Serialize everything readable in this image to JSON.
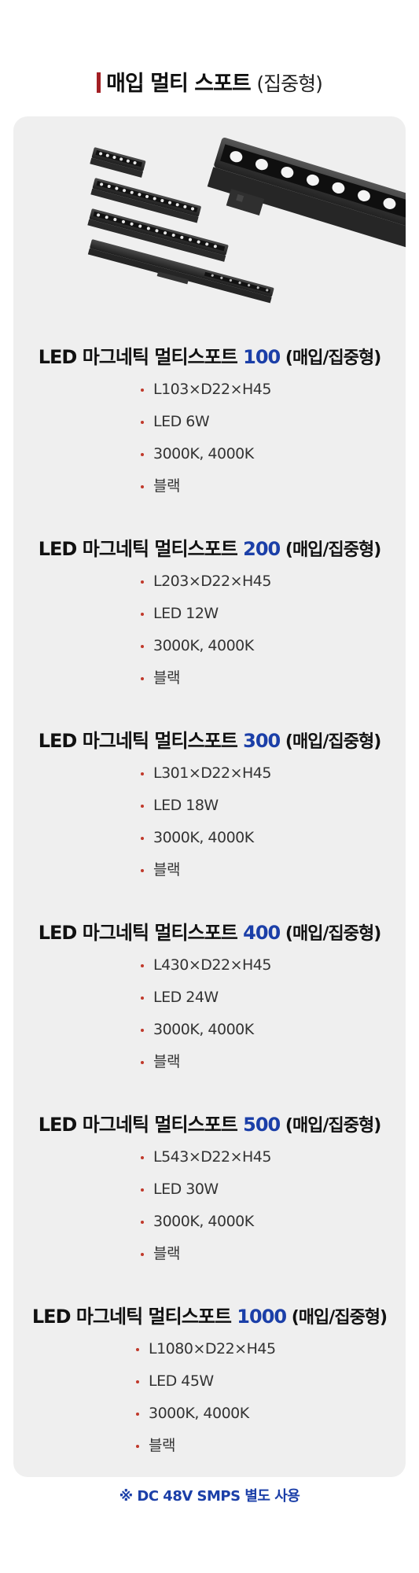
{
  "header": {
    "title": "매입 멀티 스포트",
    "subtitle": "(집중형)"
  },
  "product_image": {
    "icon": "magnetic-multi-spot-lights-image"
  },
  "models": [
    {
      "prefix": "LED 마그네틱 멀티스포트 ",
      "number": "100",
      "suffix": " (매입/집중형)",
      "specs": [
        "L103×D22×H45",
        "LED 6W",
        "3000K, 4000K",
        "블랙"
      ]
    },
    {
      "prefix": "LED 마그네틱 멀티스포트 ",
      "number": "200",
      "suffix": " (매입/집중형)",
      "specs": [
        "L203×D22×H45",
        "LED 12W",
        "3000K, 4000K",
        "블랙"
      ]
    },
    {
      "prefix": "LED 마그네틱 멀티스포트 ",
      "number": "300",
      "suffix": " (매입/집중형)",
      "specs": [
        "L301×D22×H45",
        "LED 18W",
        "3000K, 4000K",
        "블랙"
      ]
    },
    {
      "prefix": "LED 마그네틱 멀티스포트 ",
      "number": "400",
      "suffix": " (매입/집중형)",
      "specs": [
        "L430×D22×H45",
        "LED 24W",
        "3000K, 4000K",
        "블랙"
      ]
    },
    {
      "prefix": "LED 마그네틱 멀티스포트 ",
      "number": "500",
      "suffix": " (매입/집중형)",
      "specs": [
        "L543×D22×H45",
        "LED 30W",
        "3000K, 4000K",
        "블랙"
      ]
    },
    {
      "prefix": "LED 마그네틱 멀티스포트 ",
      "number": "1000",
      "suffix": " (매입/집중형)",
      "specs": [
        "L1080×D22×H45",
        "LED 45W",
        "3000K, 4000K",
        "블랙"
      ]
    }
  ],
  "note": "※ DC 48V  SMPS 별도 사용",
  "colors": {
    "accent_blue": "#1b3fa8",
    "title_bar": "#a31f24",
    "bullet": "#c0392b",
    "panel": "#efefef"
  }
}
